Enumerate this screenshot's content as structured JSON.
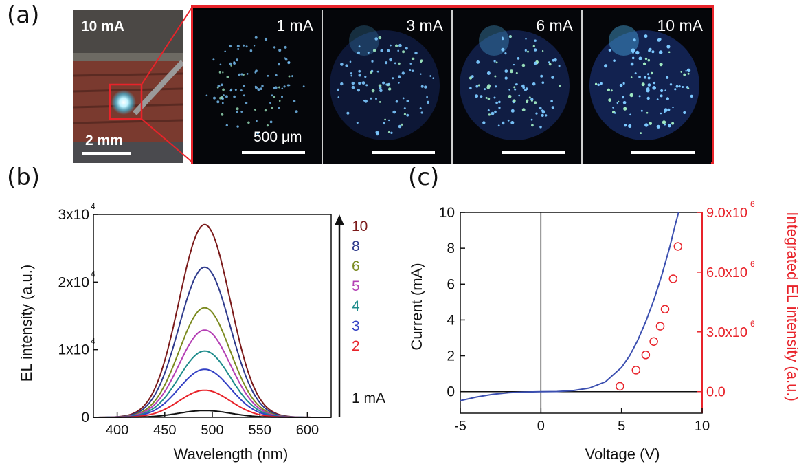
{
  "panel_labels": {
    "a": "(a)",
    "b": "(b)",
    "c": "(c)"
  },
  "photo": {
    "current_label": "10 mA",
    "scale_label": "2 mm"
  },
  "micrographs": [
    {
      "label": "1 mA",
      "scale_label": "500 μm"
    },
    {
      "label": "3 mA"
    },
    {
      "label": "6 mA"
    },
    {
      "label": "10 mA"
    }
  ],
  "colors": {
    "frame": "#e8232a",
    "axis_right": "#e8232a",
    "iv_line": "#3b4fb0"
  },
  "chart_data": [
    {
      "type": "line",
      "xlabel": "Wavelength (nm)",
      "ylabel": "EL intensity (a.u.)",
      "xlim": [
        375,
        625
      ],
      "ylim": [
        0,
        30000
      ],
      "xticks": [
        400,
        450,
        500,
        550,
        600
      ],
      "yticks": [
        {
          "value": 0,
          "label": "0"
        },
        {
          "value": 10000,
          "label": "1x10",
          "exp": "4"
        },
        {
          "value": 20000,
          "label": "2x10",
          "exp": "4"
        },
        {
          "value": 30000,
          "label": "3x10",
          "exp": "4"
        }
      ],
      "peak_nm": 492,
      "width_nm": 38,
      "legend_unit": "mA",
      "series": [
        {
          "name": "10",
          "peak": 28500,
          "color": "#7b1a1a"
        },
        {
          "name": "8",
          "peak": 22200,
          "color": "#2e3a8c"
        },
        {
          "name": "6",
          "peak": 16200,
          "color": "#7b8a1f"
        },
        {
          "name": "5",
          "peak": 12900,
          "color": "#b43fb4"
        },
        {
          "name": "4",
          "peak": 9800,
          "color": "#1f8c8c"
        },
        {
          "name": "3",
          "peak": 7100,
          "color": "#3340c4"
        },
        {
          "name": "2",
          "peak": 4000,
          "color": "#e8232a"
        },
        {
          "name": "1",
          "peak": 1000,
          "color": "#111111"
        }
      ]
    },
    {
      "type": "line+scatter",
      "xlabel": "Voltage (V)",
      "ylabel": "Current (mA)",
      "ylabel_right": "Integrated EL intensity (a.u.)",
      "xlim": [
        -5,
        10
      ],
      "ylim": [
        -1.2,
        10
      ],
      "xticks": [
        -5,
        0,
        5,
        10
      ],
      "yticks": [
        0,
        2,
        4,
        6,
        8,
        10
      ],
      "yticks_right": [
        {
          "value": 0.0,
          "label": "0.0"
        },
        {
          "value": 3.0,
          "label": "3.0x10",
          "exp": "6"
        },
        {
          "value": 6.0,
          "label": "6.0x10",
          "exp": "6"
        },
        {
          "value": 9.0,
          "label": "9.0x10",
          "exp": "6"
        }
      ],
      "right_scale_per_mA": 0.9,
      "iv_curve": {
        "x": [
          -5,
          -4,
          -3,
          -2,
          -1,
          0,
          1,
          2,
          3,
          4,
          5,
          5.5,
          6,
          6.5,
          7,
          7.5,
          8,
          8.3,
          8.6
        ],
        "y": [
          -0.5,
          -0.3,
          -0.15,
          -0.06,
          -0.02,
          0,
          0.01,
          0.06,
          0.2,
          0.55,
          1.35,
          2.0,
          2.85,
          3.9,
          5.1,
          6.5,
          8.1,
          9.2,
          10.2
        ]
      },
      "el_points": {
        "x": [
          4.9,
          5.9,
          6.5,
          7.0,
          7.4,
          7.7,
          8.2,
          8.5
        ],
        "y": [
          0.3,
          1.2,
          2.05,
          2.8,
          3.65,
          4.6,
          6.3,
          8.1
        ]
      }
    }
  ]
}
